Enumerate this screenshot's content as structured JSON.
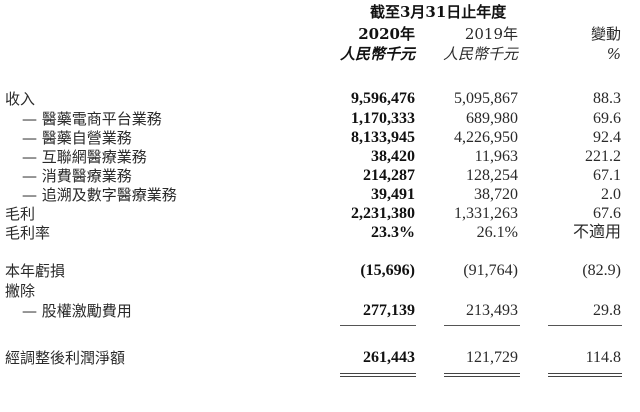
{
  "header": {
    "period": "截至3月31日止年度",
    "columns": [
      {
        "year": "2020年",
        "unit": "人民幣千元"
      },
      {
        "year": "2019年",
        "unit": "人民幣千元"
      },
      {
        "year": "變動",
        "unit": "%"
      }
    ]
  },
  "rows": [
    {
      "label": "收入",
      "v2020": "9,596,476",
      "v2019": "5,095,867",
      "change": "88.3"
    },
    {
      "label": "— 醫藥電商平台業務",
      "v2020": "1,170,333",
      "v2019": "689,980",
      "change": "69.6"
    },
    {
      "label": "— 醫藥自營業務",
      "v2020": "8,133,945",
      "v2019": "4,226,950",
      "change": "92.4"
    },
    {
      "label": "— 互聯網醫療業務",
      "v2020": "38,420",
      "v2019": "11,963",
      "change": "221.2"
    },
    {
      "label": "— 消費醫療業務",
      "v2020": "214,287",
      "v2019": "128,254",
      "change": "67.1"
    },
    {
      "label": "— 追溯及數字醫療業務",
      "v2020": "39,491",
      "v2019": "38,720",
      "change": "2.0"
    },
    {
      "label": "毛利",
      "v2020": "2,231,380",
      "v2019": "1,331,263",
      "change": "67.6"
    },
    {
      "label": "毛利率",
      "v2020": "23.3%",
      "v2019": "26.1%",
      "change": "不適用"
    },
    {
      "label": "本年虧損",
      "v2020": "(15,696)",
      "v2019": "(91,764)",
      "change": "(82.9)"
    },
    {
      "label": "撇除",
      "v2020": "",
      "v2019": "",
      "change": ""
    },
    {
      "label": "— 股權激勵費用",
      "v2020": "277,139",
      "v2019": "213,493",
      "change": "29.8"
    },
    {
      "label": "經調整後利潤淨額",
      "v2020": "261,443",
      "v2019": "121,729",
      "change": "114.8"
    }
  ]
}
